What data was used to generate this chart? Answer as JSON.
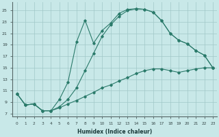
{
  "xlabel": "Humidex (Indice chaleur)",
  "bg_color": "#c8e8e8",
  "line_color": "#2a7a6a",
  "grid_color": "#a0c8c8",
  "xlim": [
    -0.5,
    23.5
  ],
  "ylim": [
    6.5,
    26.5
  ],
  "xticks": [
    0,
    1,
    2,
    3,
    4,
    5,
    6,
    7,
    8,
    9,
    10,
    11,
    12,
    13,
    14,
    15,
    16,
    17,
    18,
    19,
    20,
    21,
    22,
    23
  ],
  "yticks": [
    7,
    9,
    11,
    13,
    15,
    17,
    19,
    21,
    23,
    25
  ],
  "line1_x": [
    0,
    1,
    2,
    3,
    4,
    5,
    6,
    7,
    8,
    9,
    10,
    11,
    12,
    13,
    14,
    15,
    16,
    17,
    18,
    19,
    20,
    21,
    22,
    23
  ],
  "line1_y": [
    10.5,
    8.5,
    8.7,
    7.5,
    7.5,
    9.5,
    12.5,
    19.5,
    23.3,
    19.3,
    21.5,
    22.8,
    24.5,
    25.2,
    25.3,
    25.2,
    24.7,
    23.2,
    21.0,
    19.8,
    19.2,
    18.0,
    17.2,
    15.0
  ],
  "line2_x": [
    0,
    1,
    2,
    3,
    4,
    5,
    6,
    7,
    8,
    9,
    10,
    11,
    12,
    13,
    14,
    15,
    16,
    17,
    18,
    19,
    20,
    21,
    22,
    23
  ],
  "line2_y": [
    10.5,
    8.5,
    8.7,
    7.5,
    7.5,
    8.2,
    9.5,
    11.5,
    14.5,
    17.5,
    20.5,
    22.5,
    24.0,
    25.0,
    25.3,
    25.2,
    24.7,
    23.2,
    21.0,
    19.8,
    19.2,
    18.0,
    17.2,
    15.0
  ],
  "line3_x": [
    0,
    1,
    2,
    3,
    4,
    5,
    6,
    7,
    8,
    9,
    10,
    11,
    12,
    13,
    14,
    15,
    16,
    17,
    18,
    19,
    20,
    21,
    22,
    23
  ],
  "line3_y": [
    10.5,
    8.5,
    8.7,
    7.5,
    7.5,
    8.0,
    8.7,
    9.3,
    10.0,
    10.7,
    11.5,
    12.0,
    12.7,
    13.3,
    14.0,
    14.5,
    14.8,
    14.8,
    14.5,
    14.2,
    14.5,
    14.8,
    15.0,
    15.0
  ]
}
